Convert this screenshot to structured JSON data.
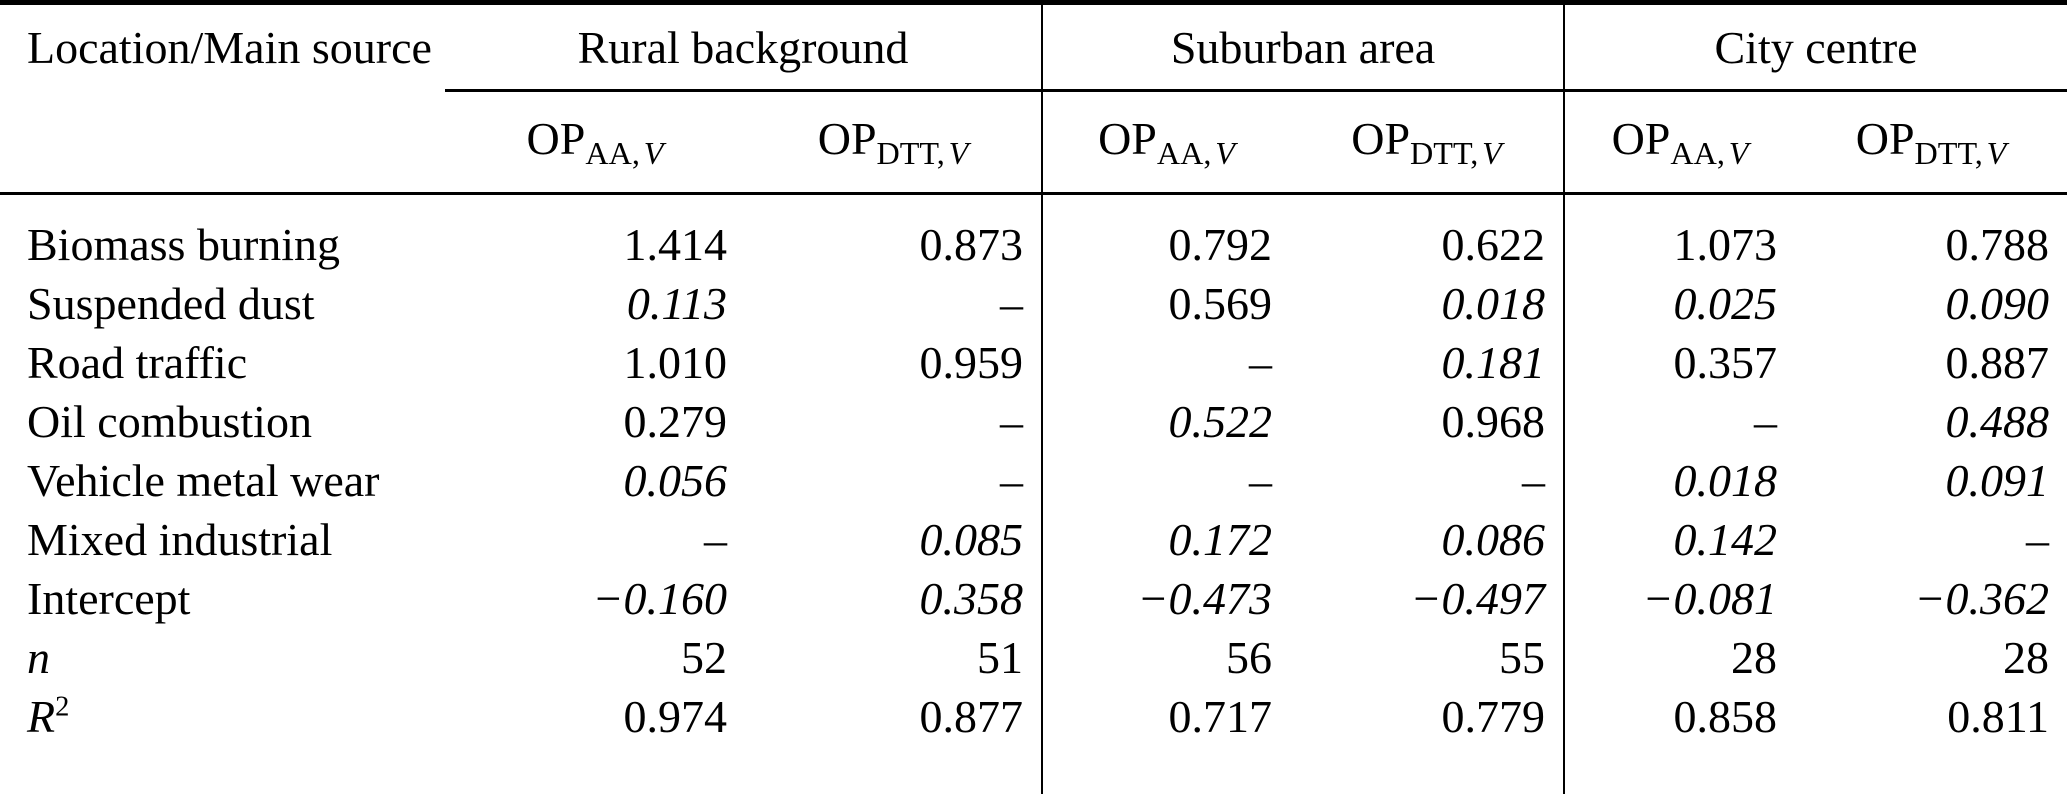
{
  "colors": {
    "text": "#000000",
    "background": "#ffffff",
    "rules": "#000000"
  },
  "table": {
    "corner_label": "Location/Main source",
    "groups": [
      {
        "label": "Rural background"
      },
      {
        "label": "Suburban area"
      },
      {
        "label": "City centre"
      }
    ],
    "sub_columns": [
      {
        "base": "OP",
        "sub": "AA,",
        "subvar": "V"
      },
      {
        "base": "OP",
        "sub": "DTT,",
        "subvar": "V"
      },
      {
        "base": "OP",
        "sub": "AA,",
        "subvar": "V"
      },
      {
        "base": "OP",
        "sub": "DTT,",
        "subvar": "V"
      },
      {
        "base": "OP",
        "sub": "AA,",
        "subvar": "V"
      },
      {
        "base": "OP",
        "sub": "DTT,",
        "subvar": "V"
      }
    ],
    "rows": [
      {
        "label": "Biomass burning",
        "label_italic": false,
        "cells": [
          {
            "v": "1.414",
            "i": false
          },
          {
            "v": "0.873",
            "i": false
          },
          {
            "v": "0.792",
            "i": false
          },
          {
            "v": "0.622",
            "i": false
          },
          {
            "v": "1.073",
            "i": false
          },
          {
            "v": "0.788",
            "i": false
          }
        ]
      },
      {
        "label": "Suspended dust",
        "label_italic": false,
        "cells": [
          {
            "v": "0.113",
            "i": true
          },
          {
            "v": "–",
            "i": false
          },
          {
            "v": "0.569",
            "i": false
          },
          {
            "v": "0.018",
            "i": true
          },
          {
            "v": "0.025",
            "i": true
          },
          {
            "v": "0.090",
            "i": true
          }
        ]
      },
      {
        "label": "Road traffic",
        "label_italic": false,
        "cells": [
          {
            "v": "1.010",
            "i": false
          },
          {
            "v": "0.959",
            "i": false
          },
          {
            "v": "–",
            "i": false
          },
          {
            "v": "0.181",
            "i": true
          },
          {
            "v": "0.357",
            "i": false
          },
          {
            "v": "0.887",
            "i": false
          }
        ]
      },
      {
        "label": "Oil combustion",
        "label_italic": false,
        "cells": [
          {
            "v": "0.279",
            "i": false
          },
          {
            "v": "–",
            "i": false
          },
          {
            "v": "0.522",
            "i": true
          },
          {
            "v": "0.968",
            "i": false
          },
          {
            "v": "–",
            "i": false
          },
          {
            "v": "0.488",
            "i": true
          }
        ]
      },
      {
        "label": "Vehicle metal wear",
        "label_italic": false,
        "cells": [
          {
            "v": "0.056",
            "i": true
          },
          {
            "v": "–",
            "i": false
          },
          {
            "v": "–",
            "i": false
          },
          {
            "v": "–",
            "i": false
          },
          {
            "v": "0.018",
            "i": true
          },
          {
            "v": "0.091",
            "i": true
          }
        ]
      },
      {
        "label": "Mixed industrial",
        "label_italic": false,
        "cells": [
          {
            "v": "–",
            "i": false
          },
          {
            "v": "0.085",
            "i": true
          },
          {
            "v": "0.172",
            "i": true
          },
          {
            "v": "0.086",
            "i": true
          },
          {
            "v": "0.142",
            "i": true
          },
          {
            "v": "–",
            "i": false
          }
        ]
      },
      {
        "label": "Intercept",
        "label_italic": false,
        "cells": [
          {
            "v": "−0.160",
            "i": true
          },
          {
            "v": "0.358",
            "i": true
          },
          {
            "v": "−0.473",
            "i": true
          },
          {
            "v": "−0.497",
            "i": true
          },
          {
            "v": "−0.081",
            "i": true
          },
          {
            "v": "−0.362",
            "i": true
          }
        ]
      },
      {
        "label": "n",
        "label_italic": true,
        "cells": [
          {
            "v": "52",
            "i": false
          },
          {
            "v": "51",
            "i": false
          },
          {
            "v": "56",
            "i": false
          },
          {
            "v": "55",
            "i": false
          },
          {
            "v": "28",
            "i": false
          },
          {
            "v": "28",
            "i": false
          }
        ]
      },
      {
        "label": "R",
        "label_sup": "2",
        "label_italic": true,
        "cells": [
          {
            "v": "0.974",
            "i": false
          },
          {
            "v": "0.877",
            "i": false
          },
          {
            "v": "0.717",
            "i": false
          },
          {
            "v": "0.779",
            "i": false
          },
          {
            "v": "0.858",
            "i": false
          },
          {
            "v": "0.811",
            "i": false
          }
        ]
      }
    ]
  }
}
